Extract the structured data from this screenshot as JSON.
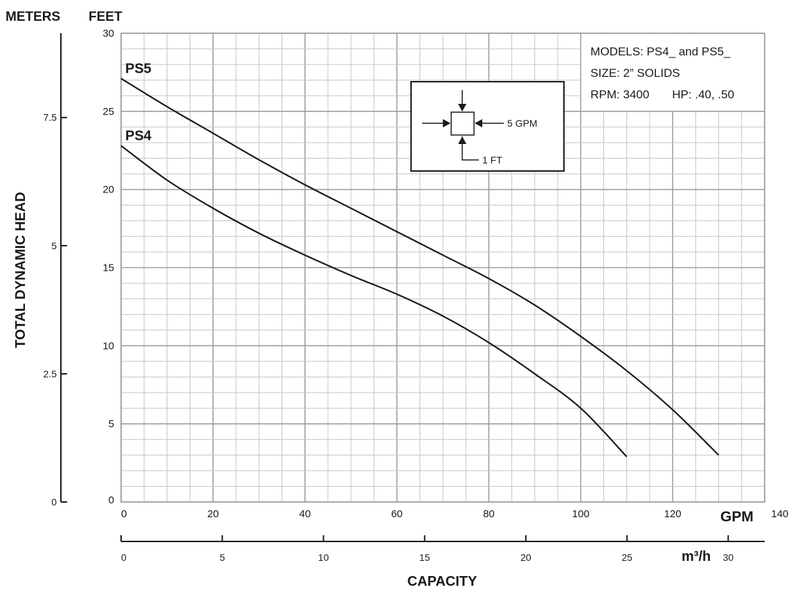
{
  "chart_data": {
    "type": "line",
    "title": "",
    "xlabel": "CAPACITY",
    "x_unit_primary": "GPM",
    "x_unit_secondary": "m³/h",
    "ylabel": "TOTAL DYNAMIC HEAD",
    "y_unit_primary": "FEET",
    "y_unit_secondary": "METERS",
    "xlim": [
      0,
      140
    ],
    "ylim": [
      0,
      30
    ],
    "x_secondary_lim": [
      0,
      31.8
    ],
    "y_secondary_lim": [
      0,
      9.144
    ],
    "x_ticks": [
      0,
      20,
      40,
      60,
      80,
      100,
      120,
      140
    ],
    "y_ticks": [
      0,
      5,
      10,
      15,
      20,
      25,
      30
    ],
    "x_secondary_ticks": [
      0,
      5,
      10,
      15,
      20,
      25,
      30
    ],
    "y_secondary_ticks": [
      0,
      2.5,
      5,
      7.5
    ],
    "grid": true,
    "series": [
      {
        "name": "PS5",
        "x": [
          0,
          10,
          20,
          30,
          40,
          50,
          60,
          70,
          80,
          90,
          100,
          110,
          120,
          130
        ],
        "y": [
          27.1,
          25.3,
          23.6,
          21.9,
          20.3,
          18.8,
          17.3,
          15.8,
          14.3,
          12.6,
          10.6,
          8.4,
          5.9,
          3.0
        ]
      },
      {
        "name": "PS4",
        "x": [
          0,
          10,
          20,
          30,
          40,
          50,
          60,
          70,
          80,
          90,
          100,
          110
        ],
        "y": [
          22.8,
          20.6,
          18.8,
          17.2,
          15.8,
          14.5,
          13.3,
          11.9,
          10.2,
          8.2,
          6.0,
          2.9
        ]
      }
    ],
    "annotations": {
      "info_box": [
        "MODELS: PS4_ and PS5_",
        "SIZE: 2” SOLIDS"
      ],
      "rpm": "RPM: 3400",
      "hp": "HP: .40, .50",
      "scale_key_gpm": "5 GPM",
      "scale_key_ft": "1 FT"
    }
  }
}
